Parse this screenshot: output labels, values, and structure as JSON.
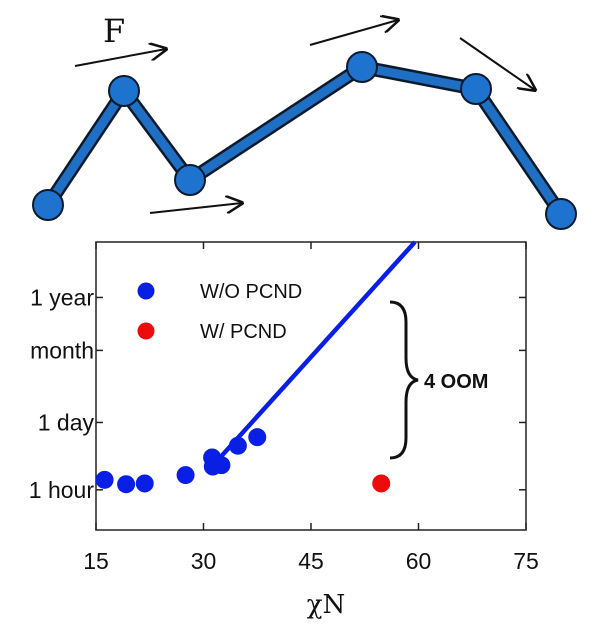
{
  "diagram": {
    "force_label": "F",
    "chain_color": "#1f6fc4",
    "bead_color": "#1e73cf"
  },
  "chart_data": {
    "type": "scatter",
    "xlabel": "χN",
    "ylabel": "",
    "xlim": [
      15,
      75
    ],
    "xticks": [
      15,
      30,
      45,
      60,
      75
    ],
    "y_scale": "log (hours)",
    "yticks": [
      {
        "label": "1 hour",
        "hours": 1
      },
      {
        "label": "1 day",
        "hours": 24
      },
      {
        "label": "month",
        "hours": 720
      },
      {
        "label": "1 year",
        "hours": 8760
      }
    ],
    "ylim_hours": [
      0.15,
      120000
    ],
    "legend_position": "top-left",
    "grid": false,
    "series": [
      {
        "name": "W/O PCND",
        "color": "#0a1fe6",
        "points": [
          {
            "x": 16.2,
            "y": 1.6
          },
          {
            "x": 19.2,
            "y": 1.3
          },
          {
            "x": 21.8,
            "y": 1.35
          },
          {
            "x": 27.5,
            "y": 2.0
          },
          {
            "x": 31.2,
            "y": 4.6
          },
          {
            "x": 31.3,
            "y": 3.0
          },
          {
            "x": 32.5,
            "y": 3.2
          },
          {
            "x": 34.8,
            "y": 8.0
          },
          {
            "x": 37.5,
            "y": 12.0
          }
        ]
      },
      {
        "name": "W/ PCND",
        "color": "#ee0b0b",
        "points": [
          {
            "x": 54.8,
            "y": 1.35
          }
        ]
      }
    ],
    "fit_line": {
      "color": "#0a1fe6",
      "from": {
        "x": 31.0,
        "y": 2.8
      },
      "to": {
        "x": 59.5,
        "y": 120000
      }
    },
    "annotation": {
      "text": "4 OOM",
      "from_hours": 1.35,
      "to_hours": 13000
    }
  }
}
